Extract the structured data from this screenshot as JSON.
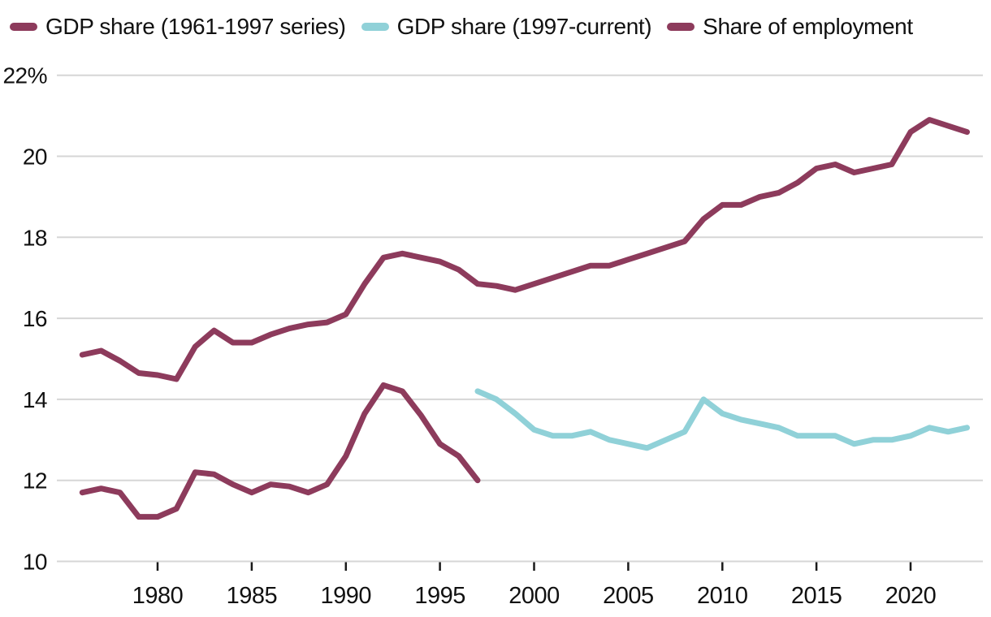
{
  "page": {
    "background": "#ffffff"
  },
  "legend": {
    "items": [
      {
        "label": "GDP share (1961-1997 series)",
        "color": "#8d3b5c"
      },
      {
        "label": "GDP share (1997-current)",
        "color": "#90d1d8"
      },
      {
        "label": "Share of employment",
        "color": "#8d3b5c"
      }
    ]
  },
  "chart_data": {
    "type": "line",
    "title": "",
    "xlabel": "",
    "ylabel": "",
    "ylim": [
      10,
      22
    ],
    "xlim": [
      1976,
      2023
    ],
    "grid": "horizontal",
    "legend_position": "top",
    "styles": {
      "grid_color": "#d6d6d6",
      "axis_color": "#d6d6d6",
      "tick_color": "#1a1a1a",
      "text_color": "#111111",
      "background": "#ffffff"
    },
    "y_ticks": [
      {
        "value": 22,
        "label": "22%"
      },
      {
        "value": 20,
        "label": "20"
      },
      {
        "value": 18,
        "label": "18"
      },
      {
        "value": 16,
        "label": "16"
      },
      {
        "value": 14,
        "label": "14"
      },
      {
        "value": 12,
        "label": "12"
      },
      {
        "value": 10,
        "label": "10"
      }
    ],
    "x_ticks": [
      {
        "value": 1980,
        "label": "1980"
      },
      {
        "value": 1985,
        "label": "1985"
      },
      {
        "value": 1990,
        "label": "1990"
      },
      {
        "value": 1995,
        "label": "1995"
      },
      {
        "value": 2000,
        "label": "2000"
      },
      {
        "value": 2005,
        "label": "2005"
      },
      {
        "value": 2010,
        "label": "2010"
      },
      {
        "value": 2015,
        "label": "2015"
      },
      {
        "value": 2020,
        "label": "2020"
      }
    ],
    "series": [
      {
        "name": "GDP share (1961-1997 series)",
        "color": "#8d3b5c",
        "x": [
          1976,
          1977,
          1978,
          1979,
          1980,
          1981,
          1982,
          1983,
          1984,
          1985,
          1986,
          1987,
          1988,
          1989,
          1990,
          1991,
          1992,
          1993,
          1994,
          1995,
          1996,
          1997
        ],
        "y": [
          11.7,
          11.8,
          11.7,
          11.1,
          11.1,
          11.3,
          12.2,
          12.15,
          11.9,
          11.7,
          11.9,
          11.85,
          11.7,
          11.9,
          12.6,
          13.65,
          14.35,
          14.2,
          13.6,
          12.9,
          12.6,
          12.0
        ]
      },
      {
        "name": "GDP share (1997-current)",
        "color": "#90d1d8",
        "x": [
          1997,
          1998,
          1999,
          2000,
          2001,
          2002,
          2003,
          2004,
          2005,
          2006,
          2007,
          2008,
          2009,
          2010,
          2011,
          2012,
          2013,
          2014,
          2015,
          2016,
          2017,
          2018,
          2019,
          2020,
          2021,
          2022,
          2023
        ],
        "y": [
          14.2,
          14.0,
          13.65,
          13.25,
          13.1,
          13.1,
          13.2,
          13.0,
          12.9,
          12.8,
          13.0,
          13.2,
          14.0,
          13.65,
          13.5,
          13.4,
          13.3,
          13.1,
          13.1,
          13.1,
          12.9,
          13.0,
          13.0,
          13.1,
          13.3,
          13.2,
          13.3
        ]
      },
      {
        "name": "Share of employment",
        "color": "#8d3b5c",
        "x": [
          1976,
          1977,
          1978,
          1979,
          1980,
          1981,
          1982,
          1983,
          1984,
          1985,
          1986,
          1987,
          1988,
          1989,
          1990,
          1991,
          1992,
          1993,
          1994,
          1995,
          1996,
          1997,
          1998,
          1999,
          2000,
          2001,
          2002,
          2003,
          2004,
          2005,
          2006,
          2007,
          2008,
          2009,
          2010,
          2011,
          2012,
          2013,
          2014,
          2015,
          2016,
          2017,
          2018,
          2019,
          2020,
          2021,
          2022,
          2023
        ],
        "y": [
          15.1,
          15.2,
          14.95,
          14.65,
          14.6,
          14.5,
          15.3,
          15.7,
          15.4,
          15.4,
          15.6,
          15.75,
          15.85,
          15.9,
          16.1,
          16.85,
          17.5,
          17.6,
          17.5,
          17.4,
          17.2,
          16.85,
          16.8,
          16.7,
          16.85,
          17.0,
          17.15,
          17.3,
          17.3,
          17.45,
          17.6,
          17.75,
          17.9,
          18.45,
          18.8,
          18.8,
          19.0,
          19.1,
          19.35,
          19.7,
          19.8,
          19.6,
          19.7,
          19.8,
          20.6,
          20.9,
          20.75,
          20.6
        ]
      }
    ]
  }
}
